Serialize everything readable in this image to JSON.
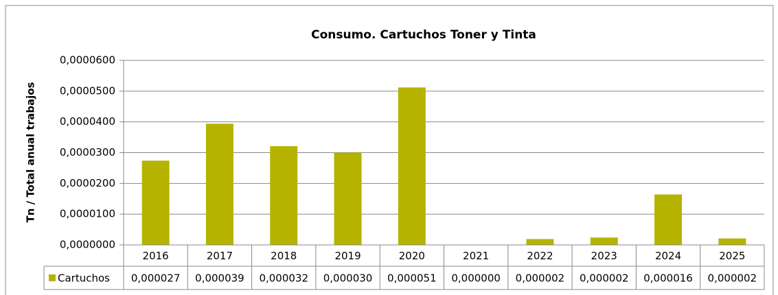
{
  "chart_data": {
    "type": "bar",
    "title": "Consumo.  Cartuchos Toner y Tinta",
    "y_label": "Tn / Total anual trabajos",
    "categories": [
      "2016",
      "2017",
      "2018",
      "2019",
      "2020",
      "2021",
      "2022",
      "2023",
      "2024",
      "2025"
    ],
    "series": [
      {
        "name": "Cartuchos",
        "color": "#b5b300",
        "values": [
          2.74e-05,
          3.94e-05,
          3.21e-05,
          3e-05,
          5.12e-05,
          0,
          1.9e-06,
          2.4e-06,
          1.64e-05,
          2.1e-06
        ],
        "value_labels": [
          "0,000027",
          "0,000039",
          "0,000032",
          "0,000030",
          "0,000051",
          "0,000000",
          "0,000002",
          "0,000002",
          "0,000016",
          "0,000002"
        ]
      }
    ],
    "ylim": [
      0,
      6e-05
    ],
    "yticks": [
      {
        "value": 0,
        "label": "0,0000000"
      },
      {
        "value": 1e-05,
        "label": "0,0000100"
      },
      {
        "value": 2e-05,
        "label": "0,0000200"
      },
      {
        "value": 3e-05,
        "label": "0,0000300"
      },
      {
        "value": 4e-05,
        "label": "0,0000400"
      },
      {
        "value": 5e-05,
        "label": "0,0000500"
      },
      {
        "value": 6e-05,
        "label": "0,0000600"
      }
    ],
    "grid": true,
    "data_table": true
  }
}
